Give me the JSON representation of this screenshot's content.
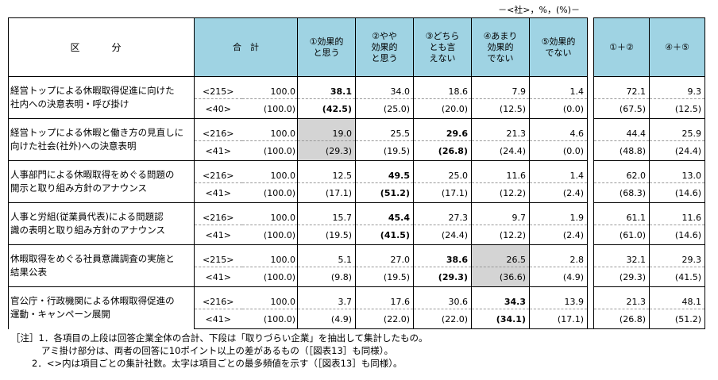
{
  "unit_note": "－<社>，%，(%)－",
  "headers": {
    "kubun": "区　分",
    "total": "合　計",
    "c1": [
      "①効果的",
      "と思う"
    ],
    "c2": [
      "②やや",
      "効果的",
      "と思う"
    ],
    "c3": [
      "③どちら",
      "とも言",
      "えない"
    ],
    "c4": [
      "④あまり",
      "効果的",
      "でない"
    ],
    "c5": [
      "⑤効果的",
      "でない"
    ],
    "s12": "①＋②",
    "s45": "④＋⑤"
  },
  "rows": [
    {
      "label": [
        "経営トップによる休暇取得促進に向けた",
        "社内への決意表明・呼び掛け"
      ],
      "upper": {
        "n": "<215>",
        "total": "100.0",
        "c1": "38.1",
        "c2": "34.0",
        "c3": "18.6",
        "c4": "7.9",
        "c5": "1.4",
        "s12": "72.1",
        "s45": "9.3"
      },
      "lower": {
        "n": "<40>",
        "total": "(100.0)",
        "c1": "(42.5)",
        "c2": "(25.0)",
        "c3": "(20.0)",
        "c4": "(12.5)",
        "c5": "(0.0)",
        "s12": "(67.5)",
        "s45": "(12.5)"
      }
    },
    {
      "label": [
        "経営トップによる休暇と働き方の見直しに",
        "向けた社会(社外)への決意表明"
      ],
      "upper": {
        "n": "<216>",
        "total": "100.0",
        "c1": "19.0",
        "c2": "25.5",
        "c3": "29.6",
        "c4": "21.3",
        "c5": "4.6",
        "s12": "44.4",
        "s45": "25.9"
      },
      "lower": {
        "n": "<41>",
        "total": "(100.0)",
        "c1": "(29.3)",
        "c2": "(19.5)",
        "c3": "(26.8)",
        "c4": "(24.4)",
        "c5": "(0.0)",
        "s12": "(48.8)",
        "s45": "(24.4)"
      }
    },
    {
      "label": [
        "人事部門による休暇取得をめぐる問題の",
        "開示と取り組み方針のアナウンス"
      ],
      "upper": {
        "n": "<216>",
        "total": "100.0",
        "c1": "12.5",
        "c2": "49.5",
        "c3": "25.0",
        "c4": "11.6",
        "c5": "1.4",
        "s12": "62.0",
        "s45": "13.0"
      },
      "lower": {
        "n": "<41>",
        "total": "(100.0)",
        "c1": "(17.1)",
        "c2": "(51.2)",
        "c3": "(17.1)",
        "c4": "(12.2)",
        "c5": "(2.4)",
        "s12": "(68.3)",
        "s45": "(14.6)"
      }
    },
    {
      "label": [
        "人事と労組(従業員代表)による問題認",
        "識の表明と取り組み方針のアナウンス"
      ],
      "upper": {
        "n": "<216>",
        "total": "100.0",
        "c1": "15.7",
        "c2": "45.4",
        "c3": "27.3",
        "c4": "9.7",
        "c5": "1.9",
        "s12": "61.1",
        "s45": "11.6"
      },
      "lower": {
        "n": "<41>",
        "total": "(100.0)",
        "c1": "(19.5)",
        "c2": "(41.5)",
        "c3": "(24.4)",
        "c4": "(12.2)",
        "c5": "(2.4)",
        "s12": "(61.0)",
        "s45": "(14.6)"
      }
    },
    {
      "label": [
        "休暇取得をめぐる社員意識調査の実施と",
        "結果公表"
      ],
      "upper": {
        "n": "<215>",
        "total": "100.0",
        "c1": "5.1",
        "c2": "27.0",
        "c3": "38.6",
        "c4": "26.5",
        "c5": "2.8",
        "s12": "32.1",
        "s45": "29.3"
      },
      "lower": {
        "n": "<41>",
        "total": "(100.0)",
        "c1": "(9.8)",
        "c2": "(19.5)",
        "c3": "(29.3)",
        "c4": "(36.6)",
        "c5": "(4.9)",
        "s12": "(29.3)",
        "s45": "(41.5)"
      }
    },
    {
      "label": [
        "官公庁・行政機関による休暇取得促進の",
        "運動・キャンペーン展開"
      ],
      "upper": {
        "n": "<216>",
        "total": "100.0",
        "c1": "3.7",
        "c2": "17.6",
        "c3": "30.6",
        "c4": "34.3",
        "c5": "13.9",
        "s12": "21.3",
        "s45": "48.1"
      },
      "lower": {
        "n": "<41>",
        "total": "(100.0)",
        "c1": "(4.9)",
        "c2": "(22.0)",
        "c3": "(22.0)",
        "c4": "(34.1)",
        "c5": "(17.1)",
        "s12": "(26.8)",
        "s45": "(51.2)"
      }
    }
  ],
  "notes": [
    "［注］1．各項目の上段は回答企業全体の合計、下段は「取りづらい企業」を抽出して集計したもの。",
    "アミ掛け部分は、両者の回答に10ポイント以上の差があるもの（［図表13］も同様）。",
    "2．<>内は項目ごとの集計社数。太字は項目ごとの最多頻値を示す（［図表13］も同様）。"
  ]
}
